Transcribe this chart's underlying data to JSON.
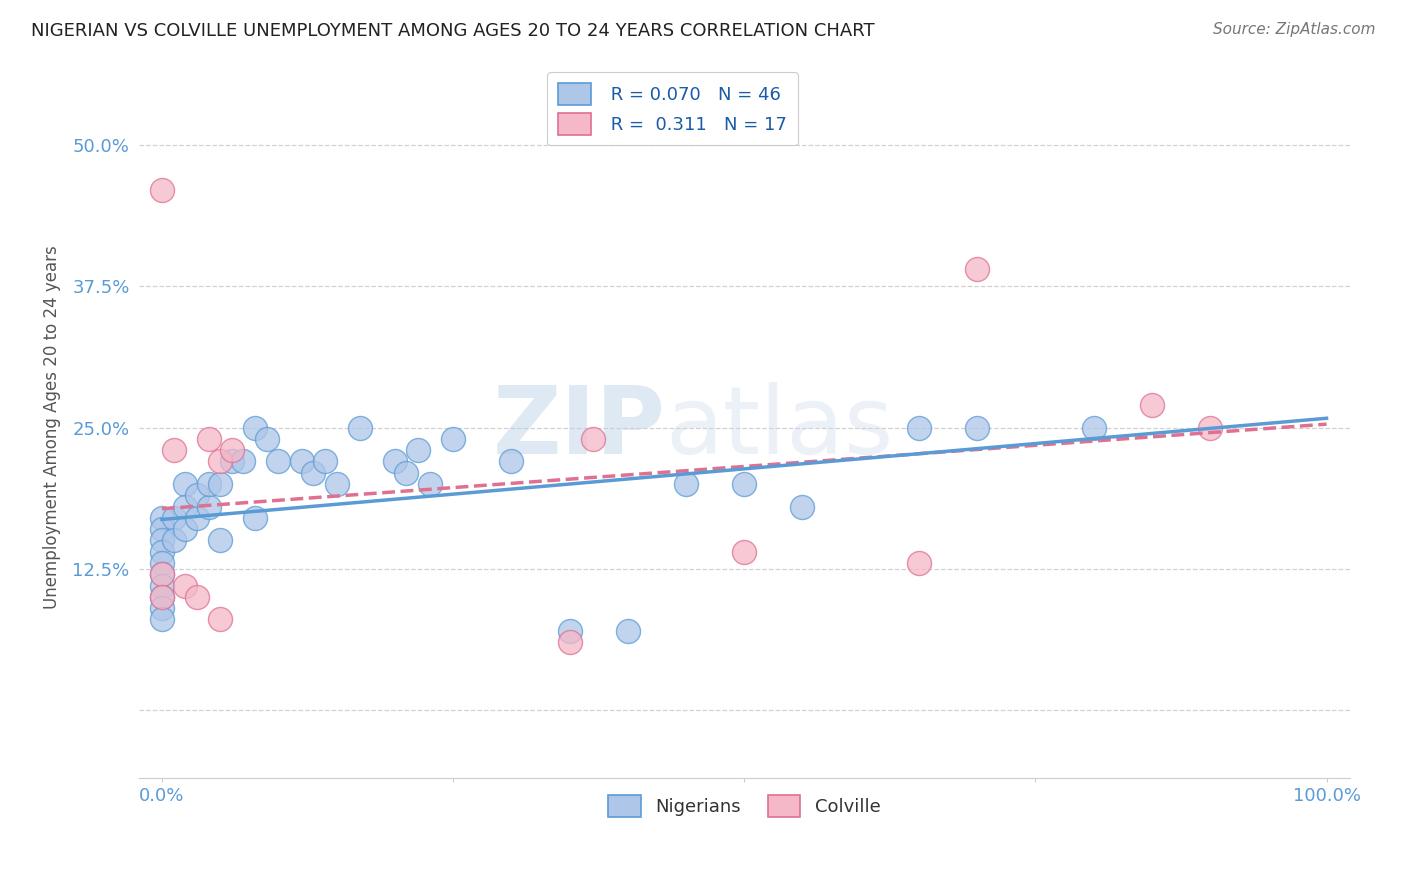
{
  "title": "NIGERIAN VS COLVILLE UNEMPLOYMENT AMONG AGES 20 TO 24 YEARS CORRELATION CHART",
  "source": "Source: ZipAtlas.com",
  "ylabel": "Unemployment Among Ages 20 to 24 years",
  "xlabel": "",
  "xlim": [
    -0.02,
    1.02
  ],
  "ylim": [
    -0.06,
    0.56
  ],
  "xticks": [
    0.0,
    0.25,
    0.5,
    0.75,
    1.0
  ],
  "xticklabels": [
    "0.0%",
    "",
    "",
    "",
    "100.0%"
  ],
  "yticks": [
    0.0,
    0.125,
    0.25,
    0.375,
    0.5
  ],
  "yticklabels": [
    "",
    "12.5%",
    "25.0%",
    "37.5%",
    "50.0%"
  ],
  "nigerian_r": 0.07,
  "nigerian_n": 46,
  "colville_r": 0.311,
  "colville_n": 17,
  "nigerian_color": "#aec6e8",
  "colville_color": "#f4b8c8",
  "nigerian_line_color": "#5b9bd5",
  "colville_line_color": "#e07090",
  "background_color": "#ffffff",
  "grid_color": "#cccccc",
  "watermark_zip": "ZIP",
  "watermark_atlas": "atlas",
  "nigerian_x": [
    0.0,
    0.0,
    0.0,
    0.0,
    0.0,
    0.0,
    0.0,
    0.0,
    0.0,
    0.0,
    0.01,
    0.01,
    0.02,
    0.02,
    0.02,
    0.03,
    0.03,
    0.04,
    0.04,
    0.05,
    0.05,
    0.06,
    0.07,
    0.08,
    0.08,
    0.09,
    0.1,
    0.12,
    0.13,
    0.14,
    0.15,
    0.17,
    0.2,
    0.21,
    0.22,
    0.23,
    0.25,
    0.3,
    0.35,
    0.4,
    0.45,
    0.5,
    0.55,
    0.65,
    0.7,
    0.8
  ],
  "nigerian_y": [
    0.17,
    0.16,
    0.15,
    0.14,
    0.13,
    0.12,
    0.11,
    0.1,
    0.09,
    0.08,
    0.17,
    0.15,
    0.2,
    0.18,
    0.16,
    0.17,
    0.19,
    0.18,
    0.2,
    0.2,
    0.15,
    0.22,
    0.22,
    0.17,
    0.25,
    0.24,
    0.22,
    0.22,
    0.21,
    0.22,
    0.2,
    0.25,
    0.22,
    0.21,
    0.23,
    0.2,
    0.24,
    0.22,
    0.07,
    0.07,
    0.2,
    0.2,
    0.18,
    0.25,
    0.25,
    0.25
  ],
  "colville_x": [
    0.0,
    0.0,
    0.0,
    0.01,
    0.02,
    0.03,
    0.04,
    0.05,
    0.05,
    0.06,
    0.35,
    0.37,
    0.5,
    0.65,
    0.7,
    0.85,
    0.9
  ],
  "colville_y": [
    0.46,
    0.12,
    0.1,
    0.23,
    0.11,
    0.1,
    0.24,
    0.22,
    0.08,
    0.23,
    0.06,
    0.24,
    0.14,
    0.13,
    0.39,
    0.27,
    0.25
  ]
}
